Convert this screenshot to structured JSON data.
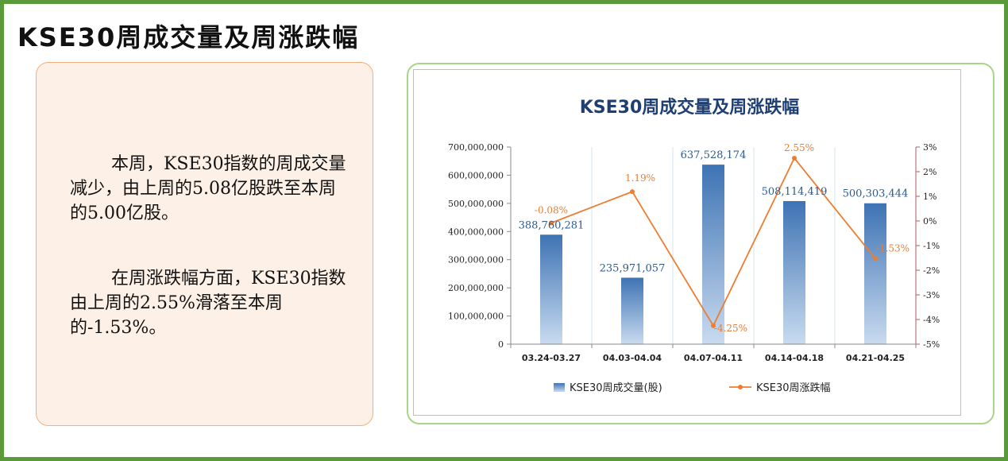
{
  "page": {
    "title": "KSE30周成交量及周涨跌幅"
  },
  "text_panel": {
    "paragraph1": "本周，KSE30指数的周成交量减少，由上周的5.08亿股跌至本周的5.00亿股。",
    "paragraph2": "在周涨跌幅方面，KSE30指数由上周的2.55%滑落至本周的-1.53%。"
  },
  "chart_data": {
    "type": "bar",
    "title": "KSE30周成交量及周涨跌幅",
    "categories": [
      "03.24-03.27",
      "04.03-04.04",
      "04.07-04.11",
      "04.14-04.18",
      "04.21-04.25"
    ],
    "series": [
      {
        "name": "KSE30周成交量(股)",
        "type": "bar",
        "axis": "left",
        "values": [
          388760281,
          235971057,
          637528174,
          508114419,
          500303444
        ],
        "labels": [
          "388,760,281",
          "235,971,057",
          "637,528,174",
          "508,114,419",
          "500,303,444"
        ],
        "color": "#5b8fc7"
      },
      {
        "name": "KSE30周涨跌幅",
        "type": "line",
        "axis": "right",
        "values": [
          -0.08,
          1.19,
          -4.25,
          2.55,
          -1.53
        ],
        "labels": [
          "-0.08%",
          "1.19%",
          "-4.25%",
          "2.55%",
          "-1.53%"
        ],
        "color": "#ed7d31"
      }
    ],
    "y_left": {
      "range": [
        0,
        700000000
      ],
      "ticks": [
        "0",
        "100,000,000",
        "200,000,000",
        "300,000,000",
        "400,000,000",
        "500,000,000",
        "600,000,000",
        "700,000,000"
      ]
    },
    "y_right": {
      "range": [
        -5,
        3
      ],
      "ticks": [
        "-5%",
        "-4%",
        "-3%",
        "-2%",
        "-1%",
        "0%",
        "1%",
        "2%",
        "3%"
      ]
    },
    "legend_position": "bottom",
    "grid": false
  },
  "colors": {
    "frame_border": "#5a9a3a",
    "text_panel_bg": "#fdf0e6",
    "text_panel_border": "#f0b080",
    "chart_border": "#a8d58a",
    "chart_title": "#1f3f73",
    "bar_top": "#3e73b4",
    "bar_bottom": "#c9dbef",
    "line": "#ed7d31",
    "bar_label": "#2e5a8a",
    "right_axis": "#b05a6a"
  }
}
